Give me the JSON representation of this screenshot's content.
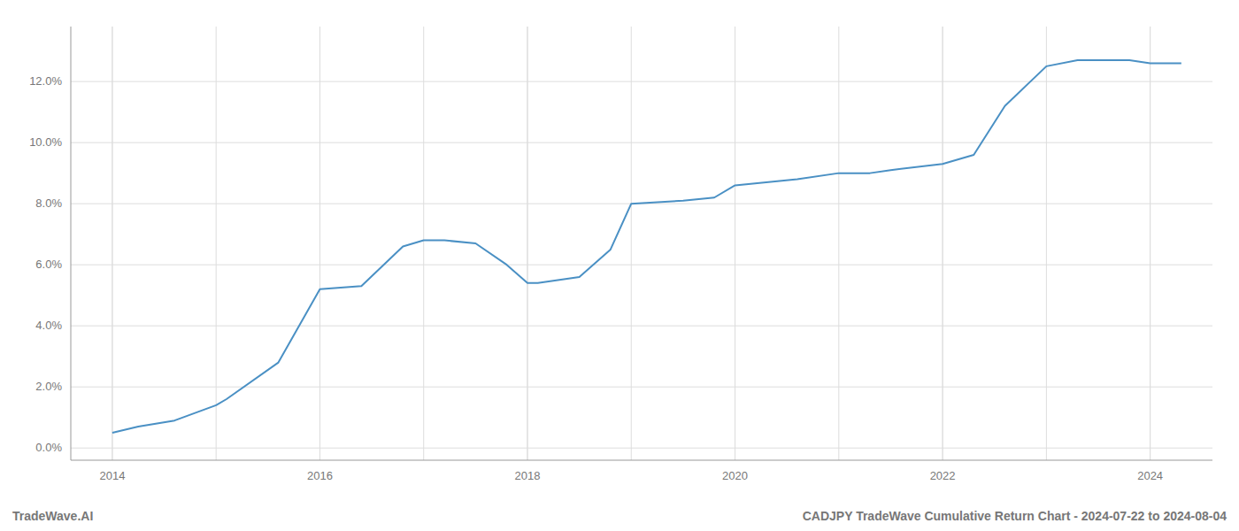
{
  "chart_data": {
    "type": "line",
    "title": "CADJPY TradeWave Cumulative Return Chart - 2024-07-22 to 2024-08-04",
    "annotations": [
      "TradeWave.AI"
    ],
    "x": [
      2014.0,
      2014.25,
      2014.6,
      2015.0,
      2015.1,
      2015.6,
      2016.0,
      2016.4,
      2016.8,
      2017.0,
      2017.2,
      2017.5,
      2017.8,
      2018.0,
      2018.1,
      2018.5,
      2018.8,
      2019.0,
      2019.5,
      2019.8,
      2020.0,
      2020.3,
      2020.6,
      2021.0,
      2021.3,
      2021.5,
      2022.0,
      2022.3,
      2022.6,
      2023.0,
      2023.3,
      2023.5,
      2023.8,
      2024.0,
      2024.3
    ],
    "values": [
      0.005,
      0.007,
      0.009,
      0.014,
      0.016,
      0.028,
      0.052,
      0.053,
      0.066,
      0.068,
      0.068,
      0.067,
      0.06,
      0.054,
      0.054,
      0.056,
      0.065,
      0.08,
      0.081,
      0.082,
      0.086,
      0.087,
      0.088,
      0.09,
      0.09,
      0.091,
      0.093,
      0.096,
      0.112,
      0.125,
      0.127,
      0.127,
      0.127,
      0.126,
      0.126
    ],
    "color": "#4a90c4",
    "xlim": [
      2013.6,
      2024.6
    ],
    "ylim": [
      -0.004,
      0.138
    ],
    "xticks": [
      2014,
      2016,
      2018,
      2020,
      2022,
      2024
    ],
    "minor_xticks": [
      2013,
      2014,
      2015,
      2016,
      2017,
      2018,
      2019,
      2020,
      2021,
      2022,
      2023,
      2024,
      2025
    ],
    "yticks": [
      {
        "value": 0.0,
        "label": "0.0%"
      },
      {
        "value": 0.02,
        "label": "2.0%"
      },
      {
        "value": 0.04,
        "label": "4.0%"
      },
      {
        "value": 0.06,
        "label": "6.0%"
      },
      {
        "value": 0.08,
        "label": "8.0%"
      },
      {
        "value": 0.1,
        "label": "10.0%"
      },
      {
        "value": 0.12,
        "label": "12.0%"
      }
    ],
    "grid": true
  }
}
